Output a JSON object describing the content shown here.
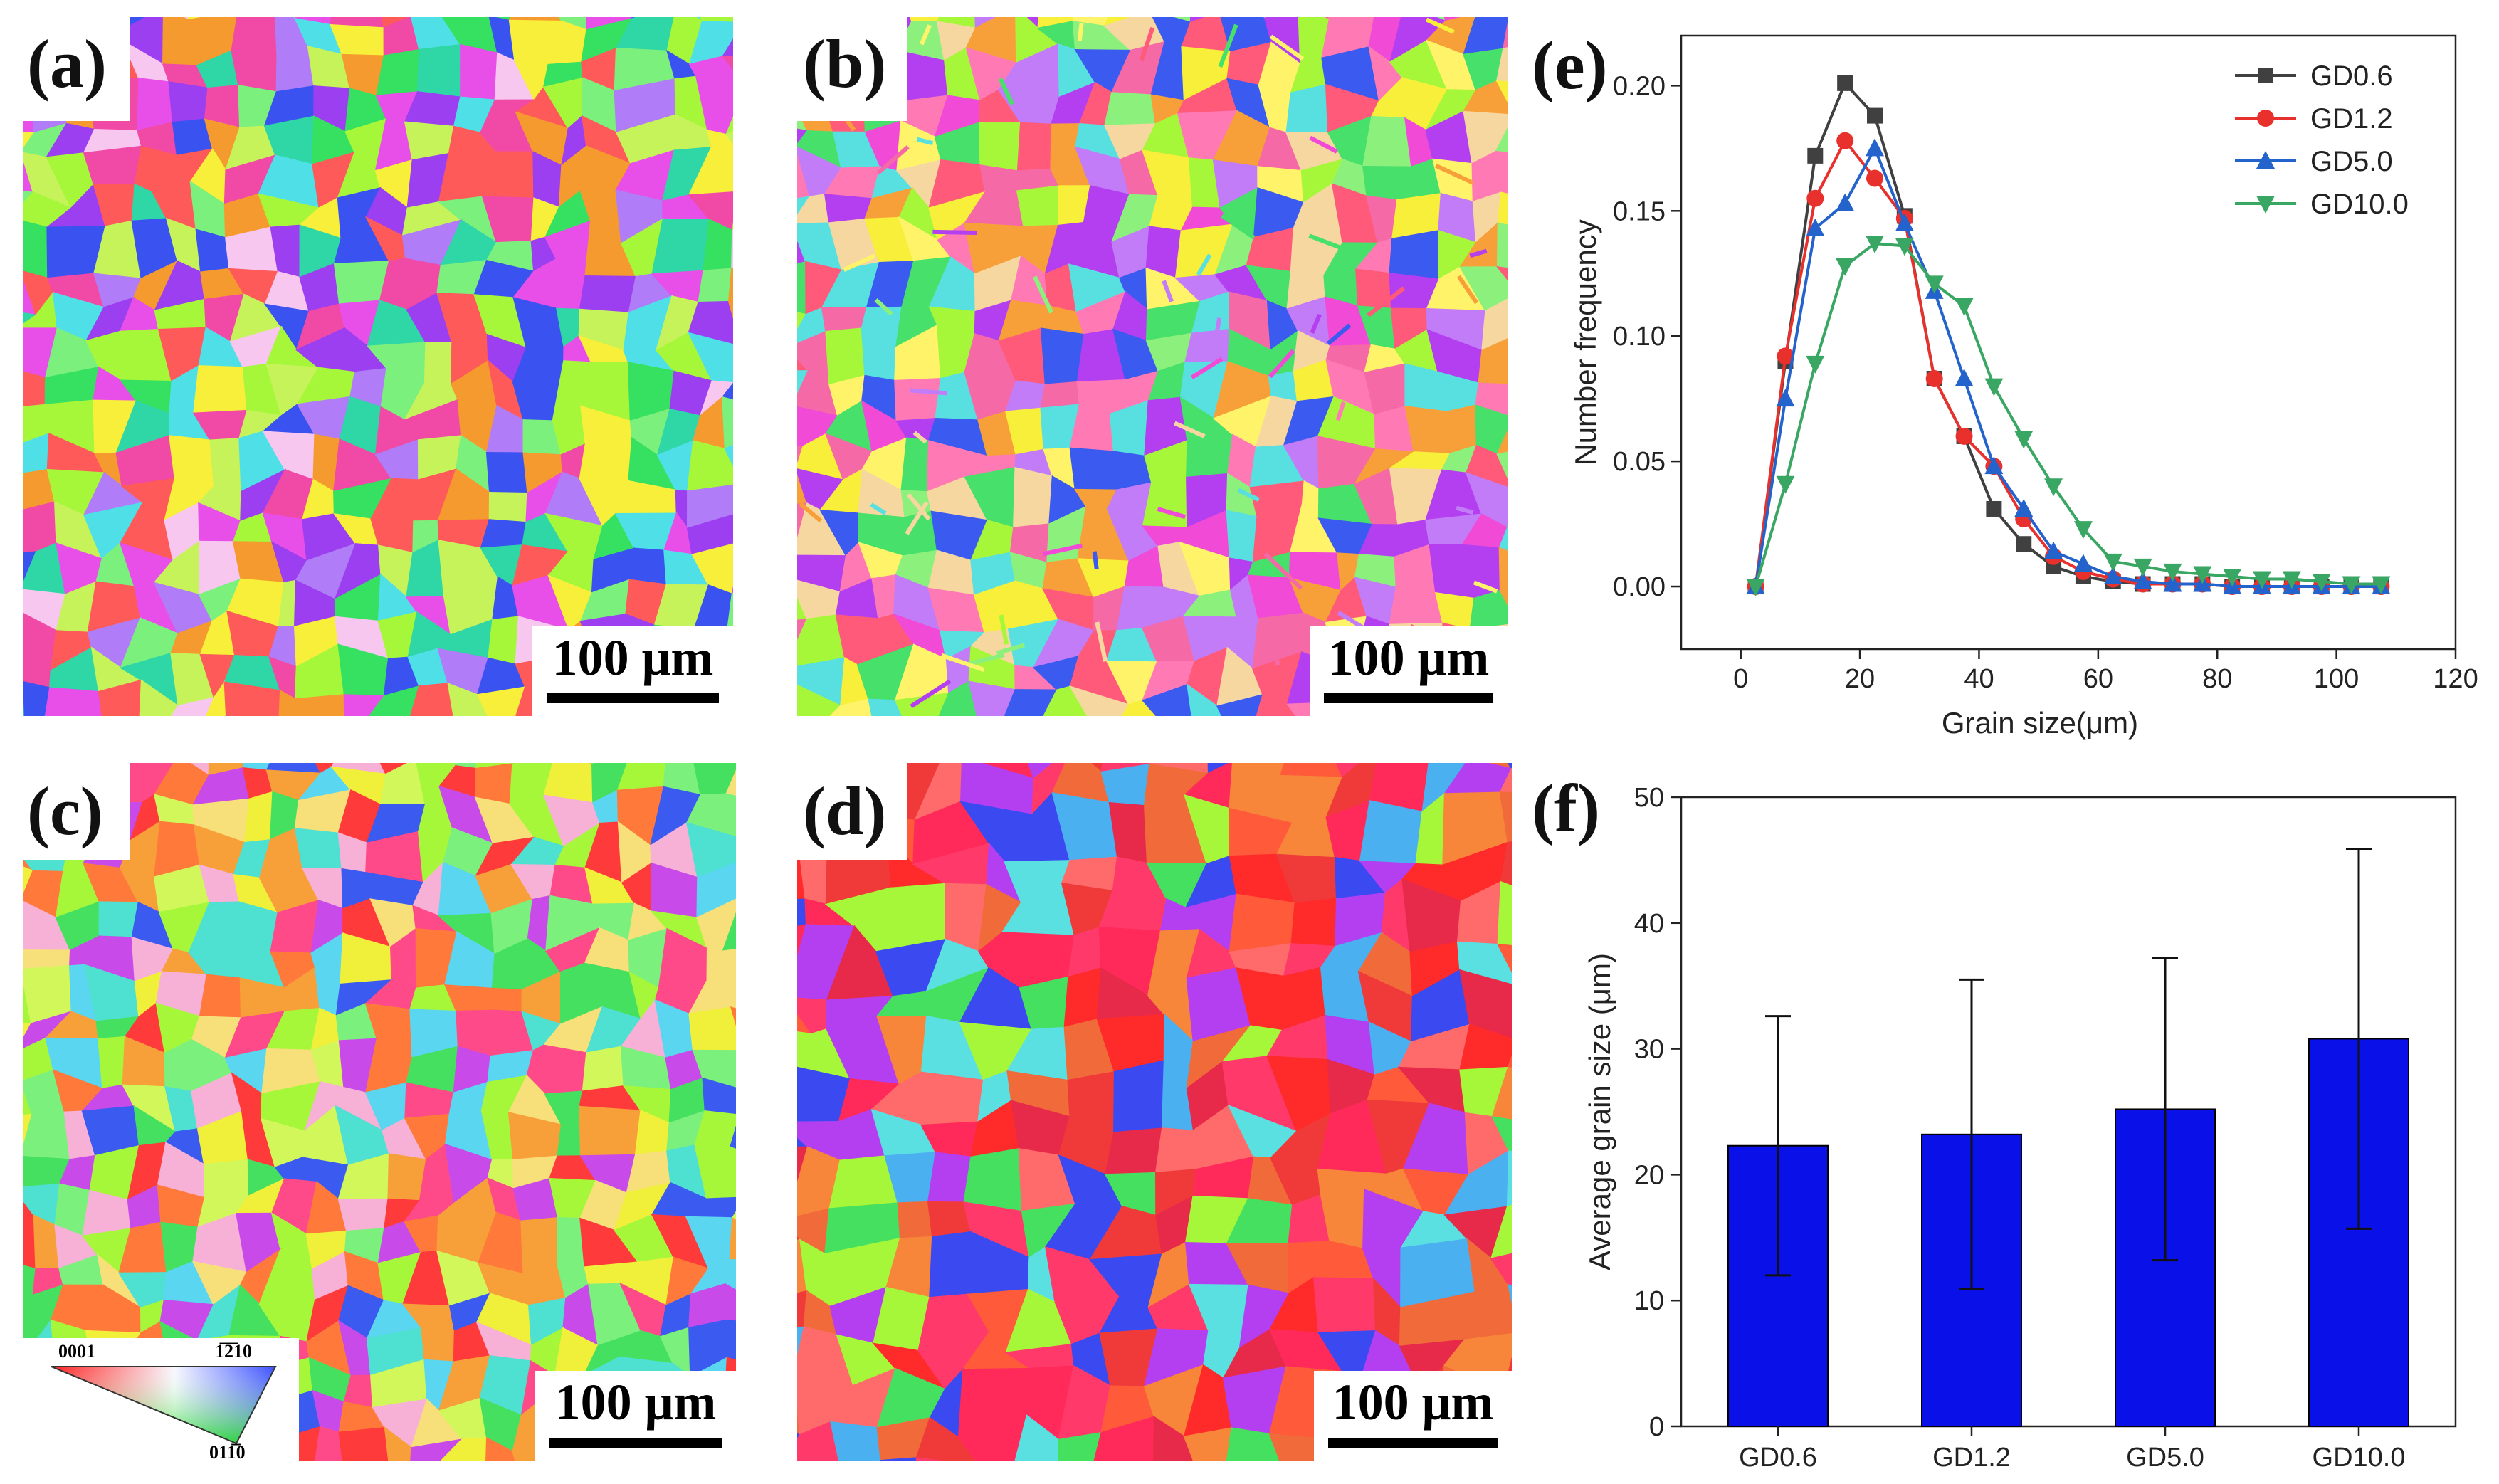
{
  "panels": {
    "a": {
      "label": "(a)",
      "scale": "100 μm"
    },
    "b": {
      "label": "(b)",
      "scale": "100 μm"
    },
    "c": {
      "label": "(c)",
      "scale": "100 μm"
    },
    "d": {
      "label": "(d)",
      "scale": "100 μm"
    },
    "e": {
      "label": "(e)"
    },
    "f": {
      "label": "(f)"
    }
  },
  "ipf_key": {
    "left": "0001",
    "top_right": "1̅2̅10",
    "bottom": "011̅0"
  },
  "palettes": {
    "a": [
      "#a6f73a",
      "#e84fe8",
      "#36e060",
      "#f7ef3a",
      "#3a52f0",
      "#f04aa6",
      "#f59a2f",
      "#9b3ff0",
      "#4ee0e6",
      "#c6f25a",
      "#ff5a5a",
      "#7cf07c",
      "#f7c7f0",
      "#2fd6a6",
      "#b07cf7"
    ],
    "b": [
      "#a6f73a",
      "#f04ad6",
      "#f7a03a",
      "#f7ef3a",
      "#3a5af0",
      "#f56aa6",
      "#46e06a",
      "#b43ff0",
      "#58e0e0",
      "#fff36a",
      "#ff5a7a",
      "#8cf07c",
      "#f7d7a0",
      "#ff7ab4",
      "#c27cf7"
    ],
    "c": [
      "#f0f03a",
      "#ff4a8a",
      "#46e060",
      "#f7a03a",
      "#3a5af0",
      "#ff3a3a",
      "#a6f73a",
      "#f7b0d6",
      "#4ee0d0",
      "#f7e07a",
      "#ff7a3a",
      "#7cf07c",
      "#c84ae8",
      "#5ad6f0",
      "#d2f75a"
    ],
    "d": [
      "#ff2a2a",
      "#f03a3a",
      "#ff5a3a",
      "#f7853a",
      "#e82a4a",
      "#ff3a6a",
      "#46e060",
      "#4ab0f0",
      "#3a4af0",
      "#a6f73a",
      "#ff6a6a",
      "#f06a3a",
      "#b43ff0",
      "#5ae0e0",
      "#ff2a5a"
    ]
  },
  "chart_data": [
    {
      "type": "line",
      "panel": "e",
      "xlabel": "Grain size(μm)",
      "ylabel": "Number frequency",
      "xlim": [
        -10,
        120
      ],
      "ylim": [
        -0.025,
        0.22
      ],
      "xticks": [
        0,
        20,
        40,
        60,
        80,
        100,
        120
      ],
      "yticks": [
        0.0,
        0.05,
        0.1,
        0.15,
        0.2
      ],
      "ytick_labels": [
        "0.00",
        "0.05",
        "0.10",
        "0.15",
        "0.20"
      ],
      "legend_position": "top-right",
      "x": [
        2.5,
        7.5,
        12.5,
        17.5,
        22.5,
        27.5,
        32.5,
        37.5,
        42.5,
        47.5,
        52.5,
        57.5,
        62.5,
        67.5,
        72.5,
        77.5,
        82.5,
        87.5,
        92.5,
        97.5,
        102.5,
        107.5
      ],
      "series": [
        {
          "name": "GD0.6",
          "color": "#404040",
          "marker": "square",
          "values": [
            0.0,
            0.09,
            0.172,
            0.201,
            0.188,
            0.148,
            0.083,
            0.06,
            0.031,
            0.017,
            0.008,
            0.004,
            0.002,
            0.001,
            0.001,
            0.001,
            0.0,
            0.0,
            0.0,
            0.0,
            0.0,
            0.0
          ]
        },
        {
          "name": "GD1.2",
          "color": "#e8302c",
          "marker": "circle",
          "values": [
            0.0,
            0.092,
            0.155,
            0.178,
            0.163,
            0.147,
            0.083,
            0.06,
            0.048,
            0.027,
            0.012,
            0.006,
            0.003,
            0.001,
            0.001,
            0.001,
            0.0,
            0.0,
            0.0,
            0.0,
            0.0,
            0.0
          ]
        },
        {
          "name": "GD5.0",
          "color": "#2462cc",
          "marker": "triangle-up",
          "values": [
            0.0,
            0.075,
            0.143,
            0.153,
            0.175,
            0.145,
            0.118,
            0.083,
            0.048,
            0.031,
            0.014,
            0.009,
            0.004,
            0.002,
            0.001,
            0.001,
            0.0,
            0.0,
            0.0,
            0.0,
            0.0,
            0.0
          ]
        },
        {
          "name": "GD10.0",
          "color": "#3aa663",
          "marker": "triangle-down",
          "values": [
            0.0,
            0.041,
            0.089,
            0.128,
            0.137,
            0.136,
            0.121,
            0.112,
            0.08,
            0.059,
            0.04,
            0.023,
            0.01,
            0.008,
            0.006,
            0.005,
            0.004,
            0.003,
            0.003,
            0.002,
            0.001,
            0.001
          ]
        }
      ]
    },
    {
      "type": "bar",
      "panel": "f",
      "ylabel": "Average grain size (μm)",
      "ylim": [
        0,
        50
      ],
      "yticks": [
        0,
        10,
        20,
        30,
        40,
        50
      ],
      "categories": [
        "GD0.6",
        "GD1.2",
        "GD5.0",
        "GD10.0"
      ],
      "values": [
        22.3,
        23.2,
        25.2,
        30.8
      ],
      "errors": [
        10.3,
        12.3,
        12.0,
        15.1
      ],
      "bar_color": "#0a10e8"
    }
  ]
}
